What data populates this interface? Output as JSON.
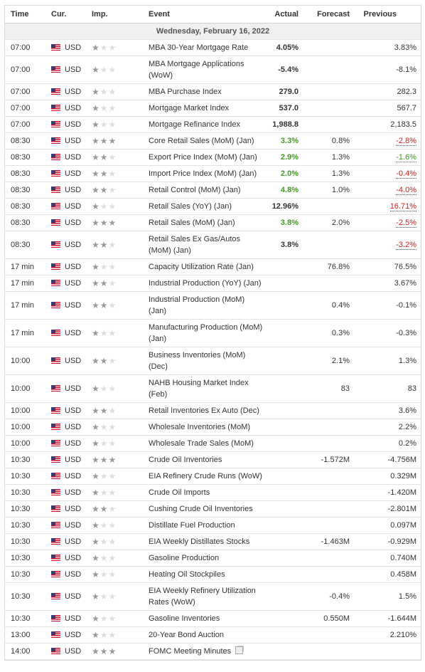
{
  "headers": {
    "time": "Time",
    "cur": "Cur.",
    "imp": "Imp.",
    "event": "Event",
    "actual": "Actual",
    "forecast": "Forecast",
    "previous": "Previous"
  },
  "day": "Wednesday, February 16, 2022",
  "colors": {
    "positive": "#3f9b1f",
    "negative": "#d01d1d",
    "star_on": "#999999",
    "star_off": "#dedede"
  },
  "rows": [
    {
      "time": "07:00",
      "cur": "USD",
      "imp": 1,
      "event": [
        "MBA 30-Year Mortgage Rate"
      ],
      "actual": "4.05%",
      "actual_color": "",
      "forecast": "",
      "previous": "3.83%",
      "previous_color": "",
      "h": 23
    },
    {
      "time": "07:00",
      "cur": "USD",
      "imp": 1,
      "event": [
        "MBA Mortgage Applications",
        "(WoW)"
      ],
      "actual": "-5.4%",
      "actual_color": "",
      "forecast": "",
      "previous": "-8.1%",
      "previous_color": "",
      "h": 39
    },
    {
      "time": "07:00",
      "cur": "USD",
      "imp": 1,
      "event": [
        "MBA Purchase Index"
      ],
      "actual": "279.0",
      "actual_color": "",
      "forecast": "",
      "previous": "282.3",
      "previous_color": "",
      "h": 23
    },
    {
      "time": "07:00",
      "cur": "USD",
      "imp": 1,
      "event": [
        "Mortgage Market Index"
      ],
      "actual": "537.0",
      "actual_color": "",
      "forecast": "",
      "previous": "567.7",
      "previous_color": "",
      "h": 23
    },
    {
      "time": "07:00",
      "cur": "USD",
      "imp": 1,
      "event": [
        "Mortgage Refinance Index"
      ],
      "actual": "1,988.8",
      "actual_color": "",
      "forecast": "",
      "previous": "2,183.5",
      "previous_color": "",
      "h": 23
    },
    {
      "time": "08:30",
      "cur": "USD",
      "imp": 3,
      "event": [
        "Core Retail Sales (MoM) (Jan)"
      ],
      "actual": "3.3%",
      "actual_color": "green",
      "forecast": "0.8%",
      "previous": "-2.8%",
      "previous_color": "red",
      "h": 23
    },
    {
      "time": "08:30",
      "cur": "USD",
      "imp": 2,
      "event": [
        "Export Price Index (MoM) (Jan)"
      ],
      "actual": "2.9%",
      "actual_color": "green",
      "forecast": "1.3%",
      "previous": "-1.6%",
      "previous_color": "green",
      "h": 23
    },
    {
      "time": "08:30",
      "cur": "USD",
      "imp": 2,
      "event": [
        "Import Price Index (MoM) (Jan)"
      ],
      "actual": "2.0%",
      "actual_color": "green",
      "forecast": "1.3%",
      "previous": "-0.4%",
      "previous_color": "red",
      "h": 23
    },
    {
      "time": "08:30",
      "cur": "USD",
      "imp": 2,
      "event": [
        "Retail Control (MoM) (Jan)"
      ],
      "actual": "4.8%",
      "actual_color": "green",
      "forecast": "1.0%",
      "previous": "-4.0%",
      "previous_color": "red",
      "h": 23
    },
    {
      "time": "08:30",
      "cur": "USD",
      "imp": 1,
      "event": [
        "Retail Sales (YoY) (Jan)"
      ],
      "actual": "12.96%",
      "actual_color": "",
      "forecast": "",
      "previous": "16.71%",
      "previous_color": "red",
      "h": 23
    },
    {
      "time": "08:30",
      "cur": "USD",
      "imp": 3,
      "event": [
        "Retail Sales (MoM) (Jan)"
      ],
      "actual": "3.8%",
      "actual_color": "green",
      "forecast": "2.0%",
      "previous": "-2.5%",
      "previous_color": "red",
      "h": 23
    },
    {
      "time": "08:30",
      "cur": "USD",
      "imp": 2,
      "event": [
        "Retail Sales Ex Gas/Autos",
        "(MoM) (Jan)"
      ],
      "actual": "3.8%",
      "actual_color": "",
      "forecast": "",
      "previous": "-3.2%",
      "previous_color": "red",
      "h": 39
    },
    {
      "time": "17 min",
      "cur": "USD",
      "imp": 1,
      "event": [
        "Capacity Utilization Rate (Jan)"
      ],
      "actual": "",
      "actual_color": "",
      "forecast": "76.8%",
      "previous": "76.5%",
      "previous_color": "",
      "h": 23
    },
    {
      "time": "17 min",
      "cur": "USD",
      "imp": 2,
      "event": [
        "Industrial Production (YoY) (Jan)"
      ],
      "actual": "",
      "actual_color": "",
      "forecast": "",
      "previous": "3.67%",
      "previous_color": "",
      "h": 23
    },
    {
      "time": "17 min",
      "cur": "USD",
      "imp": 2,
      "event": [
        "Industrial Production (MoM)",
        "(Jan)"
      ],
      "actual": "",
      "actual_color": "",
      "forecast": "0.4%",
      "previous": "-0.1%",
      "previous_color": "",
      "h": 39
    },
    {
      "time": "17 min",
      "cur": "USD",
      "imp": 1,
      "event": [
        "Manufacturing Production (MoM)",
        "(Jan)"
      ],
      "actual": "",
      "actual_color": "",
      "forecast": "0.3%",
      "previous": "-0.3%",
      "previous_color": "",
      "h": 39
    },
    {
      "time": "10:00",
      "cur": "USD",
      "imp": 2,
      "event": [
        "Business Inventories (MoM)",
        "(Dec)"
      ],
      "actual": "",
      "actual_color": "",
      "forecast": "2.1%",
      "previous": "1.3%",
      "previous_color": "",
      "h": 39
    },
    {
      "time": "10:00",
      "cur": "USD",
      "imp": 1,
      "event": [
        "NAHB Housing Market Index",
        "(Feb)"
      ],
      "actual": "",
      "actual_color": "",
      "forecast": "83",
      "previous": "83",
      "previous_color": "",
      "h": 39
    },
    {
      "time": "10:00",
      "cur": "USD",
      "imp": 2,
      "event": [
        "Retail Inventories Ex Auto (Dec)"
      ],
      "actual": "",
      "actual_color": "",
      "forecast": "",
      "previous": "3.6%",
      "previous_color": "",
      "h": 23
    },
    {
      "time": "10:00",
      "cur": "USD",
      "imp": 1,
      "event": [
        "Wholesale Inventories (MoM)"
      ],
      "actual": "",
      "actual_color": "",
      "forecast": "",
      "previous": "2.2%",
      "previous_color": "",
      "h": 23
    },
    {
      "time": "10:00",
      "cur": "USD",
      "imp": 1,
      "event": [
        "Wholesale Trade Sales (MoM)"
      ],
      "actual": "",
      "actual_color": "",
      "forecast": "",
      "previous": "0.2%",
      "previous_color": "",
      "h": 23
    },
    {
      "time": "10:30",
      "cur": "USD",
      "imp": 3,
      "event": [
        "Crude Oil Inventories"
      ],
      "actual": "",
      "actual_color": "",
      "forecast": "-1.572M",
      "previous": "-4.756M",
      "previous_color": "",
      "h": 23
    },
    {
      "time": "10:30",
      "cur": "USD",
      "imp": 1,
      "event": [
        "EIA Refinery Crude Runs (WoW)"
      ],
      "actual": "",
      "actual_color": "",
      "forecast": "",
      "previous": "0.329M",
      "previous_color": "",
      "h": 23
    },
    {
      "time": "10:30",
      "cur": "USD",
      "imp": 1,
      "event": [
        "Crude Oil Imports"
      ],
      "actual": "",
      "actual_color": "",
      "forecast": "",
      "previous": "-1.420M",
      "previous_color": "",
      "h": 23
    },
    {
      "time": "10:30",
      "cur": "USD",
      "imp": 2,
      "event": [
        "Cushing Crude Oil Inventories"
      ],
      "actual": "",
      "actual_color": "",
      "forecast": "",
      "previous": "-2.801M",
      "previous_color": "",
      "h": 23
    },
    {
      "time": "10:30",
      "cur": "USD",
      "imp": 1,
      "event": [
        "Distillate Fuel Production"
      ],
      "actual": "",
      "actual_color": "",
      "forecast": "",
      "previous": "0.097M",
      "previous_color": "",
      "h": 23
    },
    {
      "time": "10:30",
      "cur": "USD",
      "imp": 1,
      "event": [
        "EIA Weekly Distillates Stocks"
      ],
      "actual": "",
      "actual_color": "",
      "forecast": "-1.463M",
      "previous": "-0.929M",
      "previous_color": "",
      "h": 23
    },
    {
      "time": "10:30",
      "cur": "USD",
      "imp": 1,
      "event": [
        "Gasoline Production"
      ],
      "actual": "",
      "actual_color": "",
      "forecast": "",
      "previous": "0.740M",
      "previous_color": "",
      "h": 23
    },
    {
      "time": "10:30",
      "cur": "USD",
      "imp": 1,
      "event": [
        "Heating Oil Stockpiles"
      ],
      "actual": "",
      "actual_color": "",
      "forecast": "",
      "previous": "0.458M",
      "previous_color": "",
      "h": 23
    },
    {
      "time": "10:30",
      "cur": "USD",
      "imp": 1,
      "event": [
        "EIA Weekly Refinery Utilization",
        "Rates (WoW)"
      ],
      "actual": "",
      "actual_color": "",
      "forecast": "-0.4%",
      "previous": "1.5%",
      "previous_color": "",
      "h": 39
    },
    {
      "time": "10:30",
      "cur": "USD",
      "imp": 1,
      "event": [
        "Gasoline Inventories"
      ],
      "actual": "",
      "actual_color": "",
      "forecast": "0.550M",
      "previous": "-1.644M",
      "previous_color": "",
      "h": 23
    },
    {
      "time": "13:00",
      "cur": "USD",
      "imp": 1,
      "event": [
        "20-Year Bond Auction"
      ],
      "actual": "",
      "actual_color": "",
      "forecast": "",
      "previous": "2.210%",
      "previous_color": "",
      "h": 23
    },
    {
      "time": "14:00",
      "cur": "USD",
      "imp": 3,
      "event": [
        "FOMC Meeting Minutes"
      ],
      "actual": "",
      "actual_color": "",
      "forecast": "",
      "previous": "",
      "previous_color": "",
      "h": 23,
      "doc_icon": true
    }
  ]
}
